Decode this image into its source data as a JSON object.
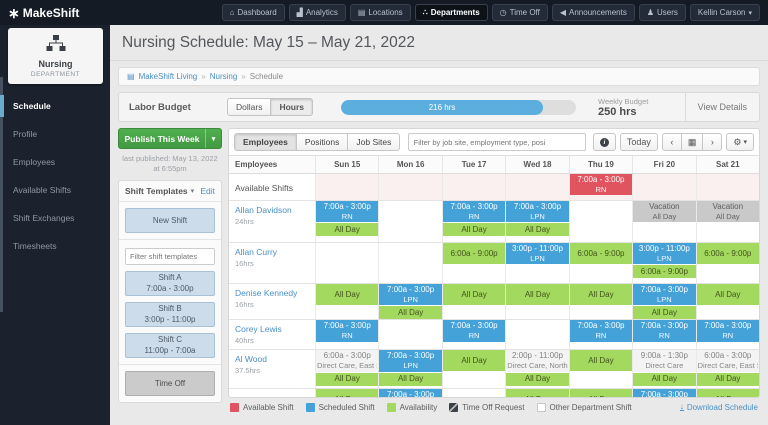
{
  "topnav": {
    "logo": "MakeShift",
    "items": [
      {
        "label": "Dashboard",
        "icon": "dashboard-icon",
        "glyph": "⌂",
        "active": false
      },
      {
        "label": "Analytics",
        "icon": "analytics-icon",
        "glyph": "▟",
        "active": false
      },
      {
        "label": "Locations",
        "icon": "locations-icon",
        "glyph": "▤",
        "active": false
      },
      {
        "label": "Departments",
        "icon": "departments-icon",
        "glyph": "∴",
        "active": true
      },
      {
        "label": "Time Off",
        "icon": "time-off-icon",
        "glyph": "◷",
        "active": false
      },
      {
        "label": "Announcements",
        "icon": "announcements-icon",
        "glyph": "◀",
        "active": false
      },
      {
        "label": "Users",
        "icon": "users-icon",
        "glyph": "♟",
        "active": false
      }
    ],
    "user": {
      "name": "Kellin Carson"
    }
  },
  "sidebar": {
    "department": {
      "name": "Nursing",
      "type": "DEPARTMENT"
    },
    "items": [
      {
        "label": "Schedule",
        "active": true
      },
      {
        "label": "Profile",
        "active": false
      },
      {
        "label": "Employees",
        "active": false
      },
      {
        "label": "Available Shifts",
        "active": false
      },
      {
        "label": "Shift Exchanges",
        "active": false
      },
      {
        "label": "Timesheets",
        "active": false
      }
    ]
  },
  "header": {
    "title": "Nursing Schedule: May 15 – May 21, 2022"
  },
  "breadcrumb": {
    "items": [
      {
        "label": "MakeShift Living",
        "link": true
      },
      {
        "label": "Nursing",
        "link": true
      },
      {
        "label": "Schedule",
        "link": false
      }
    ]
  },
  "labor_budget": {
    "label": "Labor Budget",
    "toggle": [
      {
        "label": "Dollars",
        "active": false
      },
      {
        "label": "Hours",
        "active": true
      }
    ],
    "progress": {
      "value_label": "216 hrs",
      "percent": 86
    },
    "weekly_budget_label": "Weekly Budget",
    "weekly_budget_value": "250 hrs",
    "view_details": "View Details"
  },
  "publish": {
    "button": "Publish This Week",
    "last_published": "last published: May 13, 2022 at 6:55pm"
  },
  "shift_templates": {
    "title": "Shift Templates",
    "edit": "Edit",
    "new_shift": "New Shift",
    "filter_placeholder": "Filter shift templates",
    "templates": [
      {
        "name": "Shift A",
        "time": "7:00a - 3:00p"
      },
      {
        "name": "Shift B",
        "time": "3:00p - 11:00p"
      },
      {
        "name": "Shift C",
        "time": "11:00p - 7:00a"
      }
    ],
    "time_off": "Time Off"
  },
  "schedule": {
    "tabs": [
      {
        "label": "Employees",
        "active": true
      },
      {
        "label": "Positions",
        "active": false
      },
      {
        "label": "Job Sites",
        "active": false
      }
    ],
    "filter_placeholder": "Filter by job site, employment type, posi",
    "toolbar": {
      "today": "Today"
    },
    "columns": [
      "Employees",
      "Sun 15",
      "Mon 16",
      "Tue 17",
      "Wed 18",
      "Thu 19",
      "Fri 20",
      "Sat 21"
    ],
    "rows": [
      {
        "name": "Available Shifts",
        "hours": "",
        "label_row": true,
        "row_type": "available",
        "cells": [
          [],
          [],
          [],
          [],
          [
            {
              "type": "available",
              "line1": "7:00a - 3:00p",
              "line2": "RN"
            }
          ],
          [],
          []
        ]
      },
      {
        "name": "Allan Davidson",
        "hours": "24hrs",
        "label_row": false,
        "row_type": "",
        "cells": [
          [
            {
              "type": "scheduled",
              "line1": "7:00a - 3:00p",
              "line2": "RN"
            },
            {
              "type": "availability",
              "line1": "All Day"
            }
          ],
          [],
          [
            {
              "type": "scheduled",
              "line1": "7:00a - 3:00p",
              "line2": "RN"
            },
            {
              "type": "availability",
              "line1": "All Day"
            }
          ],
          [
            {
              "type": "scheduled",
              "line1": "7:00a - 3:00p",
              "line2": "LPN"
            },
            {
              "type": "availability",
              "line1": "All Day"
            }
          ],
          [],
          [
            {
              "type": "vacation",
              "line1": "Vacation",
              "line2": "All Day"
            }
          ],
          [
            {
              "type": "vacation",
              "line1": "Vacation",
              "line2": "All Day"
            }
          ]
        ]
      },
      {
        "name": "Allan Curry",
        "hours": "16hrs",
        "label_row": false,
        "row_type": "",
        "cells": [
          [],
          [],
          [
            {
              "type": "availability",
              "line1": "6:00a - 9:00p"
            }
          ],
          [
            {
              "type": "scheduled",
              "line1": "3:00p - 11:00p",
              "line2": "LPN"
            }
          ],
          [
            {
              "type": "availability",
              "line1": "6:00a - 9:00p"
            }
          ],
          [
            {
              "type": "scheduled",
              "line1": "3:00p - 11:00p",
              "line2": "LPN"
            },
            {
              "type": "availability",
              "line1": "6:00a - 9:00p"
            }
          ],
          [
            {
              "type": "availability",
              "line1": "6:00a - 9:00p"
            }
          ]
        ]
      },
      {
        "name": "Denise Kennedy",
        "hours": "16hrs",
        "label_row": false,
        "row_type": "",
        "cells": [
          [
            {
              "type": "availability",
              "line1": "All Day"
            }
          ],
          [
            {
              "type": "scheduled",
              "line1": "7:00a - 3:00p",
              "line2": "LPN"
            },
            {
              "type": "availability",
              "line1": "All Day"
            }
          ],
          [
            {
              "type": "availability",
              "line1": "All Day"
            }
          ],
          [
            {
              "type": "availability",
              "line1": "All Day"
            }
          ],
          [
            {
              "type": "availability",
              "line1": "All Day"
            }
          ],
          [
            {
              "type": "scheduled",
              "line1": "7:00a - 3:00p",
              "line2": "LPN"
            },
            {
              "type": "availability",
              "line1": "All Day"
            }
          ],
          [
            {
              "type": "availability",
              "line1": "All Day"
            }
          ]
        ]
      },
      {
        "name": "Corey Lewis",
        "hours": "40hrs",
        "label_row": false,
        "row_type": "",
        "cells": [
          [
            {
              "type": "scheduled",
              "line1": "7:00a - 3:00p",
              "line2": "RN"
            }
          ],
          [],
          [
            {
              "type": "scheduled",
              "line1": "7:00a - 3:00p",
              "line2": "RN"
            }
          ],
          [],
          [
            {
              "type": "scheduled",
              "line1": "7:00a - 3:00p",
              "line2": "RN"
            }
          ],
          [
            {
              "type": "scheduled",
              "line1": "7:00a - 3:00p",
              "line2": "RN"
            }
          ],
          [
            {
              "type": "scheduled",
              "line1": "7:00a - 3:00p",
              "line2": "RN"
            }
          ]
        ]
      },
      {
        "name": "Al Wood",
        "hours": "37.5hrs",
        "label_row": false,
        "row_type": "",
        "cells": [
          [
            {
              "type": "other",
              "line1": "6:00a - 3:00p",
              "line2": "Direct Care, East S..."
            },
            {
              "type": "availability",
              "line1": "All Day"
            }
          ],
          [
            {
              "type": "scheduled",
              "line1": "7:00a - 3:00p",
              "line2": "LPN"
            },
            {
              "type": "availability",
              "line1": "All Day"
            }
          ],
          [
            {
              "type": "availability",
              "line1": "All Day"
            }
          ],
          [
            {
              "type": "other",
              "line1": "2:00p - 11:00p",
              "line2": "Direct Care, North..."
            },
            {
              "type": "availability",
              "line1": "All Day"
            }
          ],
          [
            {
              "type": "availability",
              "line1": "All Day"
            }
          ],
          [
            {
              "type": "other",
              "line1": "9:00a - 1:30p",
              "line2": "Direct Care"
            },
            {
              "type": "availability",
              "line1": "All Day"
            }
          ],
          [
            {
              "type": "other",
              "line1": "6:00a - 3:00p",
              "line2": "Direct Care, East S..."
            },
            {
              "type": "availability",
              "line1": "All Day"
            }
          ]
        ]
      },
      {
        "name": "",
        "hours": "",
        "label_row": false,
        "row_type": "",
        "cells": [
          [
            {
              "type": "availability",
              "line1": "All Day"
            }
          ],
          [
            {
              "type": "scheduled",
              "line1": "7:00a - 3:00p",
              "line2": "RN"
            }
          ],
          [],
          [
            {
              "type": "availability",
              "line1": "All Day"
            }
          ],
          [
            {
              "type": "availability",
              "line1": "All Day"
            }
          ],
          [
            {
              "type": "scheduled",
              "line1": "7:00a - 3:00p",
              "line2": "RN"
            }
          ],
          [
            {
              "type": "availability",
              "line1": "All Day"
            }
          ]
        ]
      }
    ]
  },
  "legend": {
    "items": [
      {
        "label": "Available Shift",
        "swatch": "available",
        "color": "#e0545f"
      },
      {
        "label": "Scheduled Shift",
        "swatch": "scheduled",
        "color": "#45a2d9"
      },
      {
        "label": "Availability",
        "swatch": "availability",
        "color": "#a3d95e"
      },
      {
        "label": "Time Off Request",
        "swatch": "timeoff",
        "color": "#3c4147"
      },
      {
        "label": "Other Department Shift",
        "swatch": "other",
        "color": "#ffffff"
      }
    ]
  },
  "download_label": "Download Schedule",
  "colors": {
    "brand_dark": "#151b25",
    "sidebar_dark": "#1b222d",
    "accent_blue": "#45a2d9",
    "accent_green": "#a3d95e",
    "alert_red": "#e0545f",
    "publish_green": "#47a447",
    "link_blue": "#4a90c4"
  }
}
